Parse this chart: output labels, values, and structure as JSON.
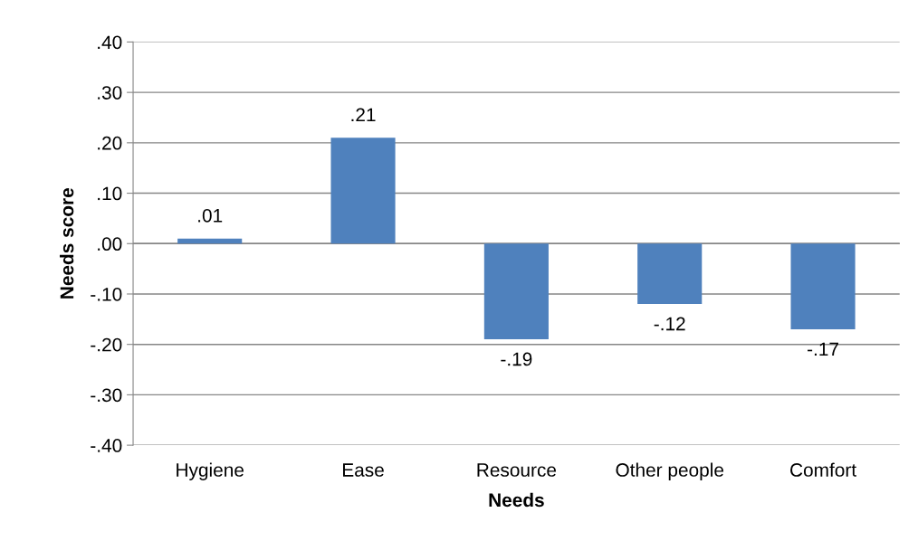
{
  "chart_data": {
    "type": "bar",
    "xlabel": "Needs",
    "ylabel": "Needs score",
    "categories": [
      "Hygiene",
      "Ease",
      "Resource",
      "Other people",
      "Comfort"
    ],
    "values": [
      0.01,
      0.21,
      -0.19,
      -0.12,
      -0.17
    ],
    "value_labels": [
      ".01",
      ".21",
      "-.19",
      "-.12",
      "-.17"
    ],
    "color": "#4f81bd",
    "ylim": [
      -0.4,
      0.4
    ],
    "yticks": [
      {
        "value": -0.4,
        "label": "-.40"
      },
      {
        "value": -0.3,
        "label": "-.30"
      },
      {
        "value": -0.2,
        "label": "-.20"
      },
      {
        "value": -0.1,
        "label": "-.10"
      },
      {
        "value": 0,
        "label": ".00"
      },
      {
        "value": 0.1,
        "label": ".10"
      },
      {
        "value": 0.2,
        "label": ".20"
      },
      {
        "value": 0.3,
        "label": ".30"
      },
      {
        "value": 0.4,
        "label": ".40"
      }
    ],
    "grid": "y",
    "legend": false
  }
}
